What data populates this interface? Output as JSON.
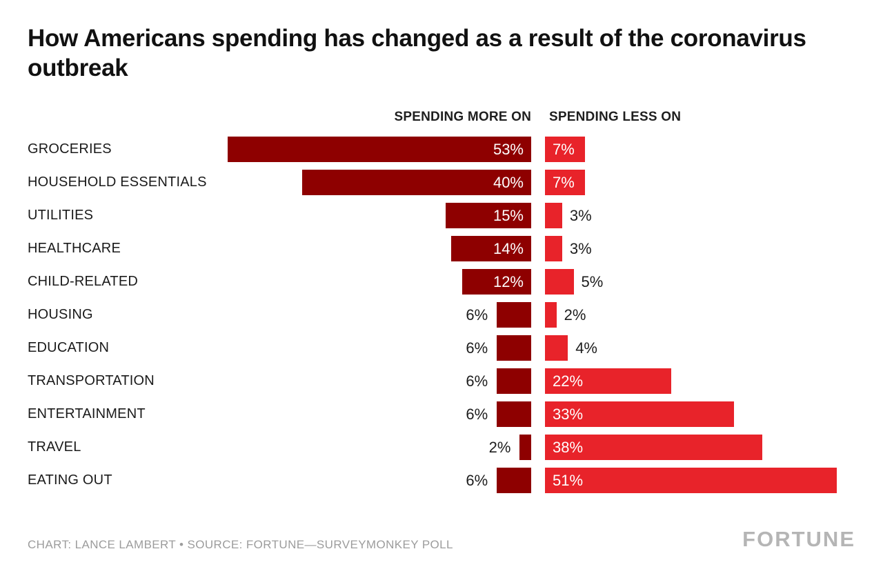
{
  "title": "How Americans spending has changed as a result of the coronavirus outbreak",
  "columns": {
    "more": "SPENDING MORE ON",
    "less": "SPENDING LESS ON"
  },
  "chart_data": {
    "type": "bar",
    "variant": "diverging-horizontal",
    "title": "How Americans spending has changed as a result of the coronavirus outbreak",
    "categories": [
      "GROCERIES",
      "HOUSEHOLD ESSENTIALS",
      "UTILITIES",
      "HEALTHCARE",
      "CHILD-RELATED",
      "HOUSING",
      "EDUCATION",
      "TRANSPORTATION",
      "ENTERTAINMENT",
      "TRAVEL",
      "EATING OUT"
    ],
    "series": [
      {
        "name": "SPENDING MORE ON",
        "color": "#8e0000",
        "values": [
          53,
          40,
          15,
          14,
          12,
          6,
          6,
          6,
          6,
          2,
          6
        ]
      },
      {
        "name": "SPENDING LESS ON",
        "color": "#e8232a",
        "values": [
          7,
          7,
          3,
          3,
          5,
          2,
          4,
          22,
          33,
          38,
          51
        ]
      }
    ],
    "value_suffix": "%",
    "xlim": [
      0,
      53
    ],
    "grid": false,
    "legend_position": "top"
  },
  "footer": {
    "credit": "CHART: LANCE LAMBERT • SOURCE: FORTUNE—SURVEYMONKEY POLL",
    "logo": "FORTUNE"
  }
}
